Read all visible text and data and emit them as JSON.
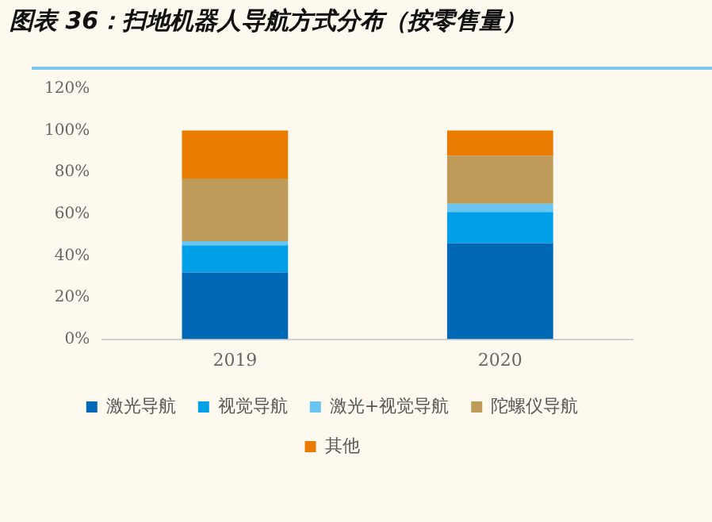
{
  "chart_data": {
    "type": "bar",
    "title": "图表 36：扫地机器人导航方式分布（按零售量）",
    "categories": [
      "2019",
      "2020"
    ],
    "stacked": true,
    "series": [
      {
        "name": "激光导航",
        "color": "#0068b5",
        "values": [
          32,
          46
        ]
      },
      {
        "name": "视觉导航",
        "color": "#009fe8",
        "values": [
          13,
          15
        ]
      },
      {
        "name": "激光+视觉导航",
        "color": "#69c4f0",
        "values": [
          2,
          4
        ]
      },
      {
        "name": "陀螺仪导航",
        "color": "#bf9b5a",
        "values": [
          30,
          23
        ]
      },
      {
        "name": "其他",
        "color": "#e97c00",
        "values": [
          23,
          12
        ]
      }
    ],
    "ylim": [
      0,
      120
    ],
    "yticks": [
      {
        "value": 0,
        "label": "0%"
      },
      {
        "value": 20,
        "label": "20%"
      },
      {
        "value": 40,
        "label": "40%"
      },
      {
        "value": 60,
        "label": "60%"
      },
      {
        "value": 80,
        "label": "80%"
      },
      {
        "value": 100,
        "label": "100%"
      },
      {
        "value": 120,
        "label": "120%"
      }
    ],
    "grid": false,
    "legend": "bottom"
  }
}
